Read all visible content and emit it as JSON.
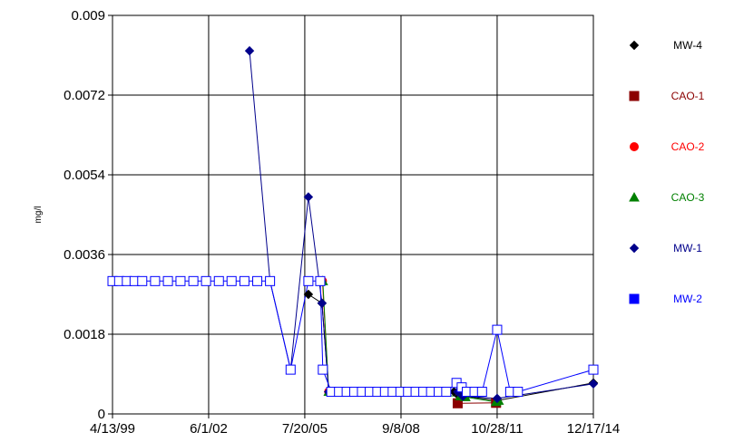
{
  "chart_data": {
    "type": "line",
    "title": "",
    "xlabel": "",
    "ylabel": "mg/l",
    "y_ticks": [
      "0",
      "0.0018",
      "0.0036",
      "0.0054",
      "0.0072",
      "0.009"
    ],
    "x_ticks": [
      "4/13/99",
      "6/1/02",
      "7/20/05",
      "9/8/08",
      "10/28/11",
      "12/17/14"
    ],
    "x_tick_dates": [
      "1999-04-13",
      "2002-06-01",
      "2005-07-20",
      "2008-09-08",
      "2011-10-28",
      "2014-12-17"
    ],
    "xlim": [
      "1999-04-13",
      "2014-12-17"
    ],
    "ylim": [
      0,
      0.009
    ],
    "grid": true,
    "legend_position": "right",
    "series": [
      {
        "name": "MW-4",
        "color": "#000000",
        "marker": "diamond",
        "points": [
          [
            "2005-09-01",
            0.0027
          ],
          [
            "2006-02-10",
            0.0025
          ],
          [
            "2006-05-01",
            0.0005
          ],
          [
            "2010-06-01",
            0.0005
          ],
          [
            "2010-08-01",
            0.0004
          ],
          [
            "2010-10-01",
            0.0004
          ],
          [
            "2011-10-28",
            0.0003
          ],
          [
            "2014-12-17",
            0.0007
          ]
        ]
      },
      {
        "name": "CAO-1",
        "color": "#8B0000",
        "marker": "square",
        "points": [
          [
            "2010-07-15",
            0.00024
          ],
          [
            "2011-10-15",
            0.00025
          ]
        ]
      },
      {
        "name": "CAO-2",
        "color": "#FF0000",
        "marker": "circle",
        "points": [
          [
            "2006-02-15",
            0.003
          ],
          [
            "2006-05-01",
            0.0005
          ]
        ]
      },
      {
        "name": "CAO-3",
        "color": "#008000",
        "marker": "triangle",
        "points": [
          [
            "2006-02-20",
            0.003
          ],
          [
            "2006-05-01",
            0.0005
          ],
          [
            "2010-08-15",
            0.0004
          ],
          [
            "2010-10-15",
            0.00038
          ],
          [
            "2011-10-15",
            0.00027
          ],
          [
            "2011-11-15",
            0.0003
          ]
        ]
      },
      {
        "name": "MW-1",
        "color": "#00008B",
        "marker": "diamond",
        "points": [
          [
            "2003-10-01",
            0.0082
          ],
          [
            "2004-06-01",
            0.003
          ],
          [
            "2005-02-01",
            0.001
          ],
          [
            "2005-09-01",
            0.0049
          ],
          [
            "2006-02-10",
            0.0025
          ],
          [
            "2006-05-01",
            0.0005
          ],
          [
            "2009-10-01",
            0.0005
          ],
          [
            "2010-07-15",
            0.0005
          ],
          [
            "2010-09-15",
            0.0004
          ],
          [
            "2011-10-28",
            0.00035
          ],
          [
            "2014-12-17",
            0.00068
          ]
        ]
      },
      {
        "name": "MW-2",
        "color": "#0000FF",
        "marker": "square",
        "points": [
          [
            "1999-04-13",
            0.003
          ],
          [
            "1999-07-01",
            0.003
          ],
          [
            "1999-10-01",
            0.003
          ],
          [
            "2000-01-01",
            0.003
          ],
          [
            "2000-04-01",
            0.003
          ],
          [
            "2000-09-01",
            0.003
          ],
          [
            "2001-02-01",
            0.003
          ],
          [
            "2001-07-01",
            0.003
          ],
          [
            "2001-12-01",
            0.003
          ],
          [
            "2002-05-01",
            0.003
          ],
          [
            "2002-10-01",
            0.003
          ],
          [
            "2003-03-01",
            0.003
          ],
          [
            "2003-08-01",
            0.003
          ],
          [
            "2004-01-01",
            0.003
          ],
          [
            "2004-06-01",
            0.003
          ],
          [
            "2005-02-01",
            0.001
          ],
          [
            "2005-09-01",
            0.003
          ],
          [
            "2006-01-20",
            0.003
          ],
          [
            "2006-02-20",
            0.001
          ],
          [
            "2006-06-01",
            0.0005
          ],
          [
            "2006-09-01",
            0.0005
          ],
          [
            "2006-12-01",
            0.0005
          ],
          [
            "2007-03-01",
            0.0005
          ],
          [
            "2007-06-01",
            0.0005
          ],
          [
            "2007-09-01",
            0.0005
          ],
          [
            "2007-12-01",
            0.0005
          ],
          [
            "2008-03-01",
            0.0005
          ],
          [
            "2008-06-01",
            0.0005
          ],
          [
            "2008-09-01",
            0.0005
          ],
          [
            "2008-12-01",
            0.0005
          ],
          [
            "2009-03-01",
            0.0005
          ],
          [
            "2009-06-01",
            0.0005
          ],
          [
            "2009-09-01",
            0.0005
          ],
          [
            "2009-12-01",
            0.0005
          ],
          [
            "2010-03-01",
            0.0005
          ],
          [
            "2010-07-01",
            0.0007
          ],
          [
            "2010-09-01",
            0.0006
          ],
          [
            "2010-11-01",
            0.0005
          ],
          [
            "2011-02-01",
            0.0005
          ],
          [
            "2011-05-01",
            0.0005
          ],
          [
            "2011-10-28",
            0.0019
          ],
          [
            "2012-04-01",
            0.0005
          ],
          [
            "2012-07-01",
            0.0005
          ],
          [
            "2014-12-17",
            0.001
          ]
        ]
      }
    ]
  }
}
